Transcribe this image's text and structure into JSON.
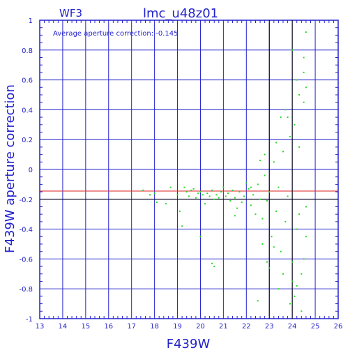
{
  "header": {
    "detector": "WF3",
    "title": "lmc_u48z01"
  },
  "annotation": "Average aperture correction: -0.145",
  "colors": {
    "axes": "#2222cc",
    "points": "#22dd22",
    "average_line": "#dd2222",
    "reference_line": "#000000"
  },
  "chart_data": {
    "type": "scatter",
    "title": "lmc_u48z01",
    "subtitle": "WF3",
    "xlabel": "F439W",
    "ylabel": "F439W aperture correction",
    "xlim": [
      13,
      26
    ],
    "ylim": [
      -1,
      1
    ],
    "x_ticks": [
      13,
      14,
      15,
      16,
      17,
      18,
      19,
      20,
      21,
      22,
      23,
      24,
      25,
      26
    ],
    "y_ticks": [
      -1,
      -0.8,
      -0.6,
      -0.4,
      -0.2,
      0,
      0.2,
      0.4,
      0.6,
      0.8,
      1
    ],
    "y_tick_labels": [
      "-1",
      "-0.8",
      "-0.6",
      "-0.4",
      "-0.2",
      "0",
      "0.2",
      "0.4",
      "0.6",
      "0.8",
      "1"
    ],
    "grid": true,
    "reference_lines": [
      {
        "orientation": "horizontal",
        "y": -0.145,
        "color": "#dd2222"
      },
      {
        "orientation": "horizontal",
        "y": -0.2,
        "color": "#000000"
      },
      {
        "orientation": "vertical",
        "x": 23,
        "color": "#000000"
      },
      {
        "orientation": "vertical",
        "x": 24,
        "color": "#000000"
      }
    ],
    "series": [
      {
        "points": [
          [
            17.5,
            -0.14
          ],
          [
            17.8,
            -0.17
          ],
          [
            18.0,
            -0.16
          ],
          [
            18.1,
            -0.22
          ],
          [
            18.5,
            -0.23
          ],
          [
            18.7,
            -0.12
          ],
          [
            19.0,
            -0.17
          ],
          [
            19.1,
            -0.28
          ],
          [
            19.3,
            -0.12
          ],
          [
            19.4,
            -0.15
          ],
          [
            19.5,
            -0.18
          ],
          [
            19.6,
            -0.14
          ],
          [
            19.7,
            -0.13
          ],
          [
            19.8,
            -0.19
          ],
          [
            19.9,
            -0.16
          ],
          [
            20.0,
            -0.15
          ],
          [
            20.1,
            -0.17
          ],
          [
            20.2,
            -0.23
          ],
          [
            20.3,
            -0.16
          ],
          [
            20.4,
            -0.18
          ],
          [
            20.5,
            -0.14
          ],
          [
            20.6,
            -0.2
          ],
          [
            20.7,
            -0.17
          ],
          [
            20.8,
            -0.19
          ],
          [
            20.9,
            -0.15
          ],
          [
            21.0,
            -0.12
          ],
          [
            21.1,
            -0.18
          ],
          [
            21.2,
            -0.16
          ],
          [
            21.3,
            -0.21
          ],
          [
            21.4,
            -0.14
          ],
          [
            21.5,
            -0.19
          ],
          [
            21.6,
            -0.26
          ],
          [
            21.7,
            -0.15
          ],
          [
            21.8,
            -0.22
          ],
          [
            21.9,
            -0.18
          ],
          [
            22.0,
            -0.09
          ],
          [
            22.1,
            -0.13
          ],
          [
            22.2,
            -0.24
          ],
          [
            22.3,
            -0.17
          ],
          [
            22.4,
            -0.3
          ],
          [
            22.5,
            -0.1
          ],
          [
            22.6,
            -0.2
          ],
          [
            22.7,
            -0.33
          ],
          [
            22.8,
            -0.04
          ],
          [
            22.9,
            -0.21
          ],
          [
            23.0,
            -0.15
          ],
          [
            23.1,
            -0.45
          ],
          [
            23.2,
            0.05
          ],
          [
            23.3,
            -0.28
          ],
          [
            23.4,
            -0.12
          ],
          [
            23.5,
            -0.55
          ],
          [
            23.6,
            0.12
          ],
          [
            23.7,
            -0.35
          ],
          [
            23.8,
            -0.18
          ],
          [
            23.9,
            0.22
          ],
          [
            24.0,
            -0.62
          ],
          [
            24.1,
            0.3
          ],
          [
            24.2,
            -0.4
          ],
          [
            24.3,
            0.15
          ],
          [
            24.4,
            -0.7
          ],
          [
            24.5,
            0.45
          ],
          [
            24.6,
            -0.25
          ],
          [
            24.0,
            0.8
          ],
          [
            24.1,
            -0.85
          ],
          [
            24.5,
            0.75
          ],
          [
            24.6,
            0.92
          ],
          [
            23.9,
            -0.9
          ],
          [
            24.4,
            -0.95
          ],
          [
            24.2,
            0.6
          ],
          [
            23.8,
            0.35
          ],
          [
            22.9,
            -0.62
          ],
          [
            23.0,
            -0.66
          ],
          [
            20.5,
            -0.63
          ],
          [
            20.6,
            -0.65
          ],
          [
            20.0,
            -0.45
          ],
          [
            19.2,
            -0.38
          ],
          [
            21.5,
            -0.31
          ],
          [
            22.2,
            -0.12
          ],
          [
            22.6,
            0.06
          ],
          [
            22.8,
            0.1
          ],
          [
            23.3,
            0.18
          ],
          [
            23.5,
            0.35
          ],
          [
            23.7,
            0.4
          ],
          [
            24.3,
            0.5
          ],
          [
            24.5,
            0.65
          ],
          [
            24.6,
            0.55
          ],
          [
            24.0,
            -0.75
          ],
          [
            24.2,
            -0.78
          ],
          [
            23.6,
            -0.7
          ],
          [
            23.4,
            -0.8
          ],
          [
            22.7,
            -0.5
          ],
          [
            23.2,
            -0.52
          ],
          [
            22.5,
            -0.88
          ],
          [
            24.5,
            -0.6
          ],
          [
            24.6,
            -0.45
          ],
          [
            24.3,
            -0.3
          ]
        ]
      }
    ]
  }
}
